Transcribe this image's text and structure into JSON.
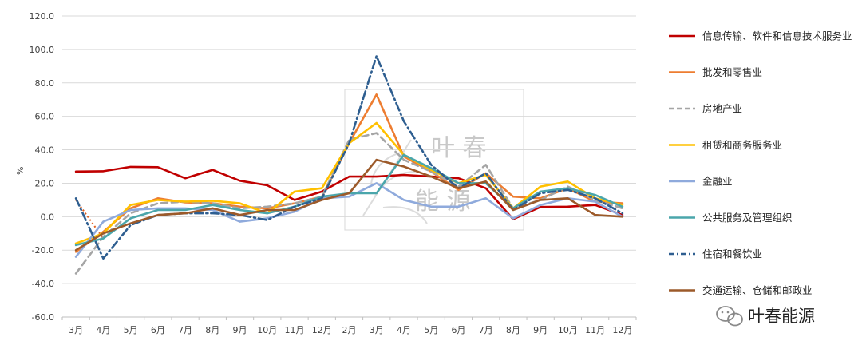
{
  "chart_data": {
    "type": "line",
    "ylabel": "%",
    "ylim": [
      -60,
      120
    ],
    "yticks": [
      "-60.0",
      "-40.0",
      "-20.0",
      "0.0",
      "20.0",
      "40.0",
      "60.0",
      "80.0",
      "100.0",
      "120.0"
    ],
    "ytick_values": [
      -60,
      -40,
      -20,
      0,
      20,
      40,
      60,
      80,
      100,
      120
    ],
    "categories": [
      "3月",
      "4月",
      "5月",
      "6月",
      "7月",
      "8月",
      "9月",
      "10月",
      "11月",
      "12月",
      "2月",
      "3月",
      "4月",
      "5月",
      "6月",
      "7月",
      "8月",
      "9月",
      "10月",
      "11月",
      "12月"
    ],
    "legend_position": "right",
    "series": [
      {
        "name": "信息传输、软件和信息技术服务业",
        "color": "#c00000",
        "style": "solid",
        "values": [
          27,
          27.2,
          29.8,
          29.6,
          23,
          28,
          21.5,
          18.8,
          10,
          15,
          24,
          24,
          25,
          24,
          23,
          17,
          -1.5,
          5.8,
          6,
          7,
          1
        ]
      },
      {
        "name": "批发和零售业",
        "color": "#ed7d31",
        "style": "solid",
        "values": [
          -21,
          -9,
          5,
          11,
          8.5,
          8,
          6,
          5,
          8,
          12,
          44,
          73,
          36,
          27,
          16,
          26,
          12,
          11,
          17,
          9,
          8
        ]
      },
      {
        "name": "房地产业",
        "color": "#a5a5a5",
        "style": "dashed",
        "values": [
          -34,
          -12,
          2,
          8,
          9,
          8,
          5,
          6,
          8,
          12,
          46,
          50,
          34,
          27,
          18,
          31,
          5,
          10,
          18,
          10,
          5
        ]
      },
      {
        "name": "租赁和商务服务业",
        "color": "#ffc000",
        "style": "solid",
        "values": [
          -16,
          -10,
          7,
          10,
          9,
          9.5,
          8,
          2,
          15,
          17,
          44,
          56,
          37,
          28,
          20,
          25,
          5,
          18,
          21,
          11,
          7
        ]
      },
      {
        "name": "金融业",
        "color": "#8faadc",
        "style": "solid",
        "values": [
          -24,
          -3,
          4,
          5,
          5,
          4,
          -3,
          -1,
          3,
          11,
          12,
          20,
          10,
          6,
          6,
          11,
          -1,
          7,
          11,
          9,
          0
        ]
      },
      {
        "name": "公共服务及管理组织",
        "color": "#4aa6ab",
        "style": "solid",
        "values": [
          -17,
          -13,
          -1,
          4,
          4,
          7,
          4,
          2,
          6,
          12,
          14,
          14,
          37,
          29,
          20,
          20,
          5,
          15,
          17,
          13,
          6
        ]
      },
      {
        "name": "住宿和餐饮业",
        "color": "#2e5e90",
        "style": "dashdot",
        "values": [
          11,
          -25,
          -5,
          1,
          2,
          2,
          1,
          -2,
          6,
          11,
          44,
          96,
          57,
          31,
          17,
          26,
          4,
          14,
          16,
          11,
          2
        ]
      },
      {
        "name": "交通运输、仓储和邮政业",
        "color": "#9c5a2a",
        "style": "solid",
        "values": [
          -20,
          -10,
          -4,
          1,
          2,
          5,
          1,
          4,
          4,
          10,
          14,
          34,
          30,
          24,
          17,
          21,
          4,
          10,
          11,
          1,
          0
        ]
      }
    ],
    "extra_segment": {
      "color": "#e06020",
      "style": "dotted",
      "from": [
        0,
        10
      ],
      "to": [
        1,
        -13
      ]
    }
  },
  "watermark": {
    "line1": "叶 春",
    "line2": "能 源"
  },
  "brand": {
    "text": "叶春能源",
    "icon": "wechat-icon"
  }
}
